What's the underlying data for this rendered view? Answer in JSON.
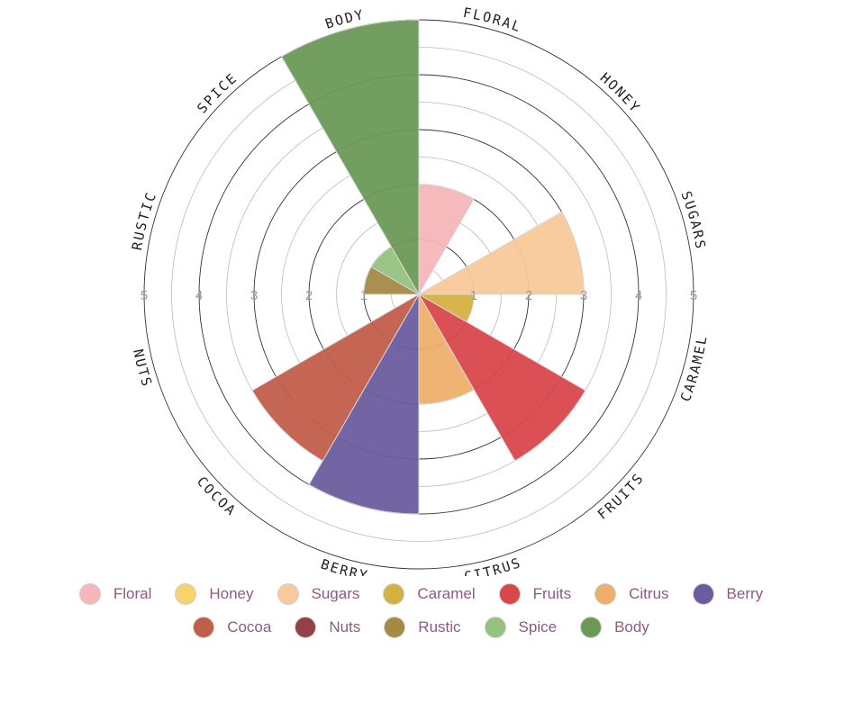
{
  "chart_data": {
    "type": "polar-area",
    "max": 5,
    "ticks": [
      "1",
      "2",
      "3",
      "4",
      "5"
    ],
    "categories": [
      "Floral",
      "Honey",
      "Sugars",
      "Caramel",
      "Fruits",
      "Citrus",
      "Berry",
      "Cocoa",
      "Nuts",
      "Rustic",
      "Spice",
      "Body"
    ],
    "axis_labels": [
      "FLORAL",
      "HONEY",
      "SUGARS",
      "CARAMEL",
      "FRUITS",
      "CITRUS",
      "BERRY",
      "COCOA",
      "NUTS",
      "RUSTIC",
      "SPICE",
      "BODY"
    ],
    "values": [
      2,
      0,
      3,
      1,
      3.5,
      2,
      4,
      3.5,
      0,
      1,
      1,
      5
    ],
    "colors": [
      "#f4b6b8",
      "#f7d46b",
      "#f8c99a",
      "#d4b143",
      "#d9474b",
      "#eeaf6b",
      "#6c5c9f",
      "#c15e4a",
      "#934146",
      "#a48a45",
      "#96c27f",
      "#6a9a57"
    ]
  }
}
